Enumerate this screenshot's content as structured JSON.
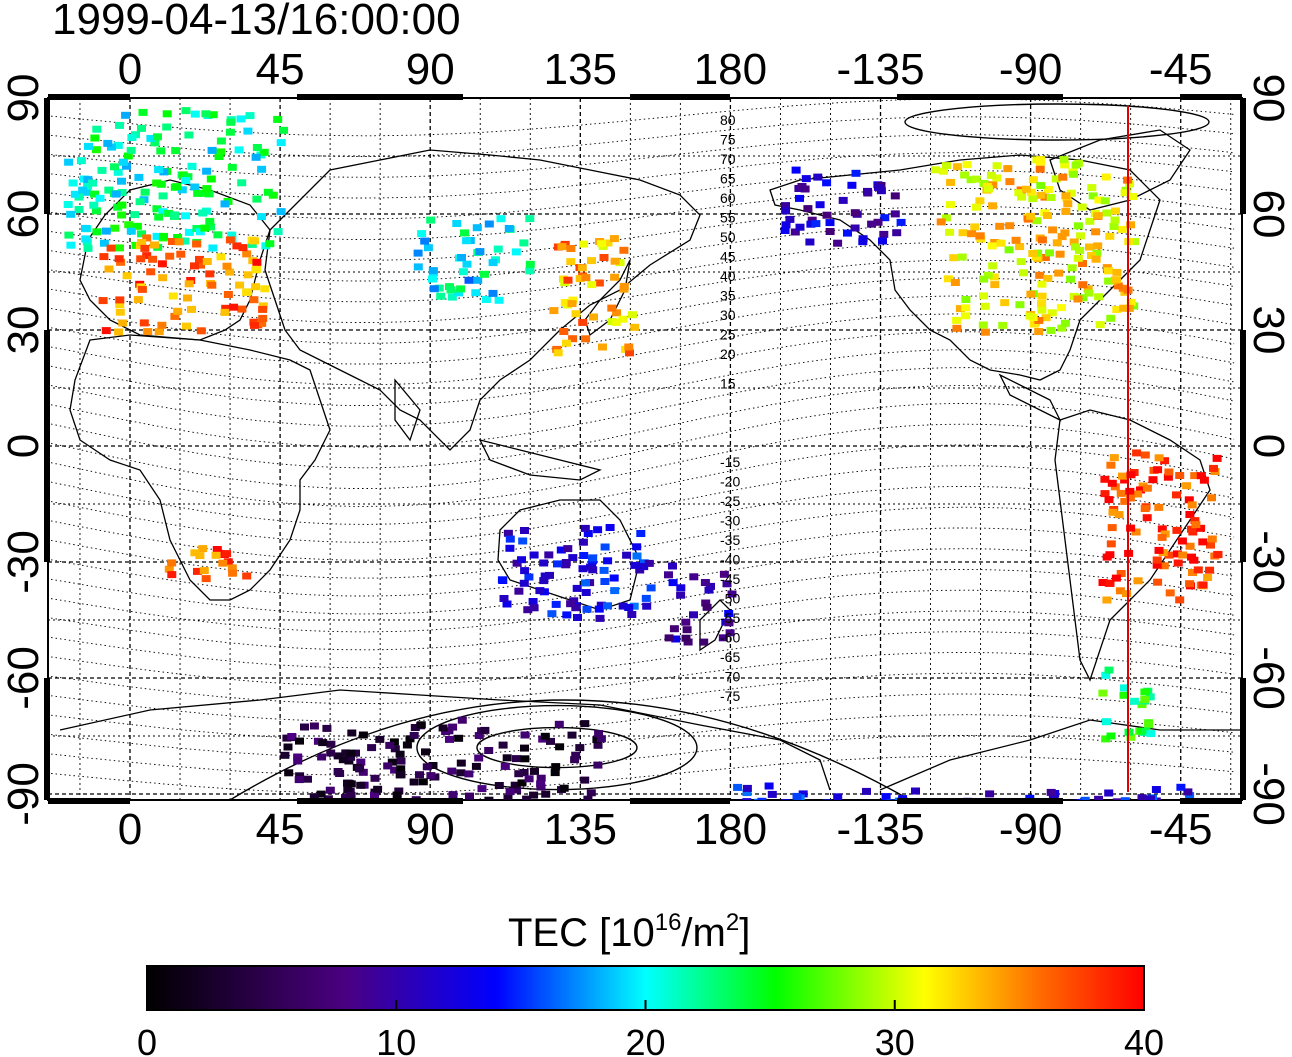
{
  "timestamp": "1999-04-13/16:00:00",
  "map": {
    "projection": "equirectangular",
    "lon_range": [
      -25,
      331
    ],
    "lat_range": [
      -95,
      95
    ],
    "lon_tick_values": [
      0,
      45,
      90,
      135,
      180,
      225,
      270,
      315
    ],
    "lon_tick_labels": [
      "0",
      "45",
      "90",
      "135",
      "180",
      "-135",
      "-90",
      "-45"
    ],
    "lat_tick_values": [
      90,
      60,
      30,
      0,
      -30,
      -60,
      -90
    ],
    "lat_tick_labels": [
      "90",
      "60",
      "30",
      "0",
      "-30",
      "-60",
      "-90"
    ],
    "grid": "dotted every 15 degrees",
    "terminator_longitude": "-60 (red vertical line)",
    "magnetic_latitude_labels_north": [
      "80",
      "75",
      "70",
      "65",
      "60",
      "55",
      "50",
      "45",
      "40",
      "35",
      "30",
      "25",
      "20",
      "15"
    ],
    "magnetic_latitude_labels_south": [
      "-15",
      "-20",
      "-25",
      "-30",
      "-35",
      "-40",
      "-45",
      "-50",
      "-55",
      "-60",
      "-65",
      "-70",
      "-75"
    ]
  },
  "colorbar": {
    "title_main": "TEC  [10",
    "title_sup1": "16",
    "title_mid": "/m",
    "title_sup2": "2",
    "title_end": "]",
    "tick_labels": [
      "0",
      "10",
      "20",
      "30",
      "40"
    ],
    "tick_values": [
      0,
      10,
      20,
      30,
      40
    ],
    "min": 0,
    "max": 40,
    "colors": [
      "#000000",
      "#4b0082",
      "#0000ff",
      "#00ffff",
      "#00ff00",
      "#ffff00",
      "#ff0000"
    ]
  },
  "chart_data": {
    "type": "heatmap",
    "title": "1999-04-13/16:00:00",
    "value_unit": "TEC [10^16/m^2]",
    "value_range": [
      0,
      40
    ],
    "regions": [
      {
        "lon_min": -20,
        "lon_max": 45,
        "lat_min": 52,
        "lat_max": 88,
        "tec": 22
      },
      {
        "lon_min": -10,
        "lon_max": 40,
        "lat_min": 30,
        "lat_max": 55,
        "tec": 36
      },
      {
        "lon_min": 85,
        "lon_max": 120,
        "lat_min": 38,
        "lat_max": 60,
        "tec": 20
      },
      {
        "lon_min": 125,
        "lon_max": 150,
        "lat_min": 25,
        "lat_max": 55,
        "tec": 34
      },
      {
        "lon_min": 195,
        "lon_max": 230,
        "lat_min": 53,
        "lat_max": 73,
        "tec": 11
      },
      {
        "lon_min": 240,
        "lon_max": 300,
        "lat_min": 30,
        "lat_max": 75,
        "tec": 32
      },
      {
        "lon_min": 290,
        "lon_max": 325,
        "lat_min": -40,
        "lat_max": 0,
        "tec": 38
      },
      {
        "lon_min": 110,
        "lon_max": 155,
        "lat_min": -45,
        "lat_max": -20,
        "tec": 13
      },
      {
        "lon_min": 160,
        "lon_max": 180,
        "lat_min": -50,
        "lat_max": -30,
        "tec": 10
      },
      {
        "lon_min": 10,
        "lon_max": 35,
        "lat_min": -35,
        "lat_max": -25,
        "tec": 37
      },
      {
        "lon_min": 290,
        "lon_max": 305,
        "lat_min": -75,
        "lat_max": -55,
        "tec": 24
      },
      {
        "lon_min": 45,
        "lon_max": 140,
        "lat_min": -92,
        "lat_max": -70,
        "tec": 4
      },
      {
        "lon_min": 180,
        "lon_max": 325,
        "lat_min": -92,
        "lat_max": -87,
        "tec": 13
      }
    ]
  }
}
